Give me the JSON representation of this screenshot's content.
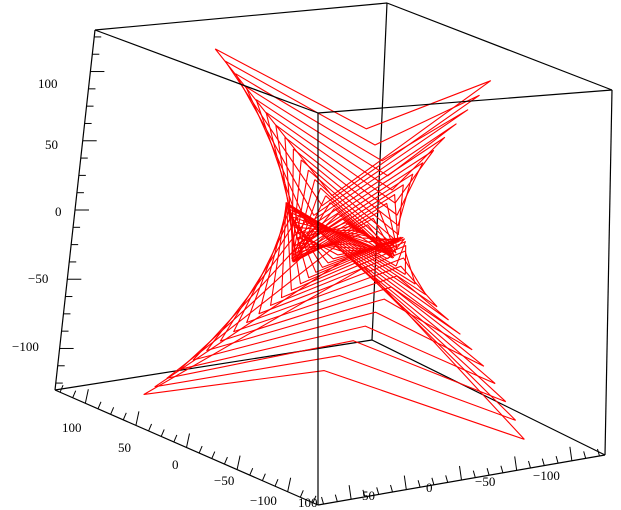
{
  "chart_data": {
    "type": "3d-line",
    "title": "",
    "xlabel": "",
    "ylabel": "",
    "zlabel": "",
    "line_color": "#ff0000",
    "axis_color": "#000000",
    "background": "#ffffff",
    "box": true,
    "grid": false,
    "legend": "none",
    "series": [
      {
        "shape": "rotating-square-spiral",
        "frames": 40,
        "side_length_range": [
          60,
          240
        ],
        "z_range": [
          -130,
          130
        ],
        "rotation_degrees": 180
      }
    ],
    "axes": {
      "vertical": {
        "range": [
          -130,
          130
        ],
        "ticks": [
          100,
          50,
          0,
          -50,
          -100
        ],
        "tick_labels": [
          "100",
          "50",
          "0",
          "−50",
          "−100"
        ]
      },
      "front_left": {
        "range": [
          130,
          -130
        ],
        "ticks": [
          100,
          50,
          0,
          -50,
          -100
        ],
        "tick_labels": [
          "100",
          "50",
          "0",
          "−50",
          "−100"
        ]
      },
      "front_right": {
        "range": [
          130,
          -130
        ],
        "ticks": [
          100,
          50,
          0,
          -50,
          -100
        ],
        "tick_labels": [
          "100",
          "50",
          "0",
          "−50",
          "−100"
        ]
      }
    }
  }
}
